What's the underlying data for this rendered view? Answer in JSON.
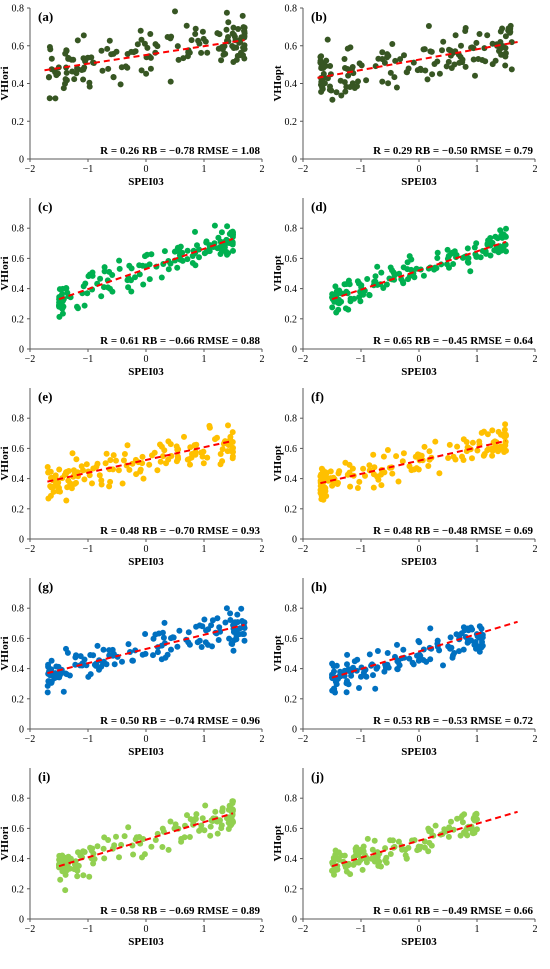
{
  "chart_data": [
    {
      "type": "scatter",
      "panel": "(a)",
      "color": "#375623",
      "xlabel": "SPEI03",
      "ylabel": "VHIori",
      "xlim": [
        -2,
        2
      ],
      "ylim": [
        0,
        0.8
      ],
      "xticks": [
        "−2",
        "−1",
        "0",
        "1",
        "2"
      ],
      "yticks": [
        "0",
        "0.2",
        "0.4",
        "0.6",
        "0.8"
      ],
      "stats": "R = 0.26  RB = −0.78  RMSE = 1.08",
      "trend": {
        "x": [
          -1.75,
          1.7
        ],
        "y": [
          0.47,
          0.63
        ]
      },
      "n_points": 150,
      "seed": 11,
      "slope": 0.046,
      "intercept": 0.55,
      "noise": 0.12,
      "x_range": [
        -1.7,
        1.7
      ],
      "y_clip": [
        0.15,
        0.85
      ]
    },
    {
      "type": "scatter",
      "panel": "(b)",
      "color": "#375623",
      "xlabel": "SPEI03",
      "ylabel": "VHIopt",
      "xlim": [
        -2,
        2
      ],
      "ylim": [
        0,
        0.8
      ],
      "xticks": [
        "−2",
        "−1",
        "0",
        "1",
        "2"
      ],
      "yticks": [
        "0",
        "0.2",
        "0.4",
        "0.6",
        "0.8"
      ],
      "stats": "R = 0.29  RB = −0.50  RMSE = 0.79",
      "trend": {
        "x": [
          -1.75,
          1.7
        ],
        "y": [
          0.43,
          0.62
        ]
      },
      "n_points": 150,
      "seed": 23,
      "slope": 0.055,
      "intercept": 0.525,
      "noise": 0.12,
      "x_range": [
        -1.7,
        1.6
      ],
      "y_clip": [
        0.2,
        0.8
      ]
    },
    {
      "type": "scatter",
      "panel": "(c)",
      "color": "#00B050",
      "xlabel": "SPEI03",
      "ylabel": "VHIori",
      "xlim": [
        -2,
        2
      ],
      "ylim": [
        0,
        1
      ],
      "xticks": [
        "−2",
        "−1",
        "0",
        "1",
        "2"
      ],
      "yticks": [
        "0",
        "0.2",
        "0.4",
        "0.6",
        "0.8"
      ],
      "stats": "R = 0.61  RB = −0.66  RMSE = 0.88",
      "trend": {
        "x": [
          -1.5,
          1.5
        ],
        "y": [
          0.33,
          0.73
        ]
      },
      "n_points": 150,
      "seed": 37,
      "slope": 0.133,
      "intercept": 0.53,
      "noise": 0.09,
      "x_range": [
        -1.5,
        1.5
      ],
      "y_clip": [
        0.1,
        0.82
      ]
    },
    {
      "type": "scatter",
      "panel": "(d)",
      "color": "#00B050",
      "xlabel": "SPEI03",
      "ylabel": "VHIopt",
      "xlim": [
        -2,
        2
      ],
      "ylim": [
        0,
        1
      ],
      "xticks": [
        "−2",
        "−1",
        "0",
        "1",
        "2"
      ],
      "yticks": [
        "0",
        "0.2",
        "0.4",
        "0.6",
        "0.8"
      ],
      "stats": "R = 0.65  RB = −0.45  RMSE = 0.64",
      "trend": {
        "x": [
          -1.5,
          1.5
        ],
        "y": [
          0.33,
          0.71
        ]
      },
      "n_points": 150,
      "seed": 41,
      "slope": 0.127,
      "intercept": 0.52,
      "noise": 0.08,
      "x_range": [
        -1.5,
        1.5
      ],
      "y_clip": [
        0.22,
        0.82
      ]
    },
    {
      "type": "scatter",
      "panel": "(e)",
      "color": "#FFC000",
      "xlabel": "SPEI03",
      "ylabel": "VHIori",
      "xlim": [
        -2,
        2
      ],
      "ylim": [
        0,
        1
      ],
      "xticks": [
        "−2",
        "−1",
        "0",
        "1",
        "2"
      ],
      "yticks": [
        "0",
        "0.2",
        "0.4",
        "0.6",
        "0.8"
      ],
      "stats": "R = 0.48  RB = −0.70  RMSE = 0.93",
      "trend": {
        "x": [
          -1.7,
          1.5
        ],
        "y": [
          0.38,
          0.65
        ]
      },
      "n_points": 150,
      "seed": 53,
      "slope": 0.084,
      "intercept": 0.52,
      "noise": 0.1,
      "x_range": [
        -1.7,
        1.5
      ],
      "y_clip": [
        0.2,
        0.78
      ]
    },
    {
      "type": "scatter",
      "panel": "(f)",
      "color": "#FFC000",
      "xlabel": "SPEI03",
      "ylabel": "VHIopt",
      "xlim": [
        -2,
        2
      ],
      "ylim": [
        0,
        1
      ],
      "xticks": [
        "−2",
        "−1",
        "0",
        "1",
        "2"
      ],
      "yticks": [
        "0",
        "0.2",
        "0.4",
        "0.6",
        "0.8"
      ],
      "stats": "R = 0.48  RB = −0.48  RMSE = 0.69",
      "trend": {
        "x": [
          -1.7,
          1.5
        ],
        "y": [
          0.37,
          0.65
        ]
      },
      "n_points": 150,
      "seed": 67,
      "slope": 0.088,
      "intercept": 0.52,
      "noise": 0.09,
      "x_range": [
        -1.7,
        1.5
      ],
      "y_clip": [
        0.26,
        0.76
      ]
    },
    {
      "type": "scatter",
      "panel": "(g)",
      "color": "#0070C0",
      "xlabel": "SPEI03",
      "ylabel": "VHIori",
      "xlim": [
        -2,
        2
      ],
      "ylim": [
        0,
        1
      ],
      "xticks": [
        "−2",
        "−1",
        "0",
        "1",
        "2"
      ],
      "yticks": [
        "0",
        "0.2",
        "0.4",
        "0.6",
        "0.8"
      ],
      "stats": "R = 0.50  RB = −0.74  RMSE = 0.96",
      "trend": {
        "x": [
          -1.7,
          1.7
        ],
        "y": [
          0.37,
          0.69
        ]
      },
      "n_points": 150,
      "seed": 79,
      "slope": 0.094,
      "intercept": 0.53,
      "noise": 0.1,
      "x_range": [
        -1.7,
        1.7
      ],
      "y_clip": [
        0.1,
        0.8
      ]
    },
    {
      "type": "scatter",
      "panel": "(h)",
      "color": "#0070C0",
      "xlabel": "SPEI03",
      "ylabel": "VHIopt",
      "xlim": [
        -2,
        2
      ],
      "ylim": [
        0,
        1
      ],
      "xticks": [
        "−2",
        "−1",
        "0",
        "1",
        "2"
      ],
      "yticks": [
        "0",
        "0.2",
        "0.4",
        "0.6",
        "0.8"
      ],
      "stats": "R = 0.53  RB = −0.53  RMSE = 0.72",
      "trend": {
        "x": [
          -1.5,
          1.7
        ],
        "y": [
          0.34,
          0.71
        ]
      },
      "n_points": 140,
      "seed": 83,
      "slope": 0.115,
      "intercept": 0.5,
      "noise": 0.09,
      "x_range": [
        -1.5,
        1.1
      ],
      "y_clip": [
        0.2,
        0.78
      ]
    },
    {
      "type": "scatter",
      "panel": "(i)",
      "color": "#92D050",
      "xlabel": "SPEI03",
      "ylabel": "VHIori",
      "xlim": [
        -2,
        2
      ],
      "ylim": [
        0,
        1
      ],
      "xticks": [
        "−2",
        "−1",
        "0",
        "1",
        "2"
      ],
      "yticks": [
        "0",
        "0.2",
        "0.4",
        "0.6",
        "0.8"
      ],
      "stats": "R = 0.58  RB = −0.69  RMSE = 0.89",
      "trend": {
        "x": [
          -1.5,
          1.5
        ],
        "y": [
          0.35,
          0.7
        ]
      },
      "n_points": 140,
      "seed": 97,
      "slope": 0.117,
      "intercept": 0.52,
      "noise": 0.09,
      "x_range": [
        -1.5,
        1.5
      ],
      "y_clip": [
        0.12,
        0.78
      ]
    },
    {
      "type": "scatter",
      "panel": "(j)",
      "color": "#92D050",
      "xlabel": "SPEI03",
      "ylabel": "VHIopt",
      "xlim": [
        -2,
        2
      ],
      "ylim": [
        0,
        1
      ],
      "xticks": [
        "−2",
        "−1",
        "0",
        "1",
        "2"
      ],
      "yticks": [
        "0",
        "0.2",
        "0.4",
        "0.6",
        "0.8"
      ],
      "stats": "R = 0.61  RB = −0.49  RMSE = 0.66",
      "trend": {
        "x": [
          -1.5,
          1.7
        ],
        "y": [
          0.35,
          0.71
        ]
      },
      "n_points": 140,
      "seed": 101,
      "slope": 0.112,
      "intercept": 0.52,
      "noise": 0.08,
      "x_range": [
        -1.5,
        1.0
      ],
      "y_clip": [
        0.15,
        0.78
      ]
    }
  ]
}
